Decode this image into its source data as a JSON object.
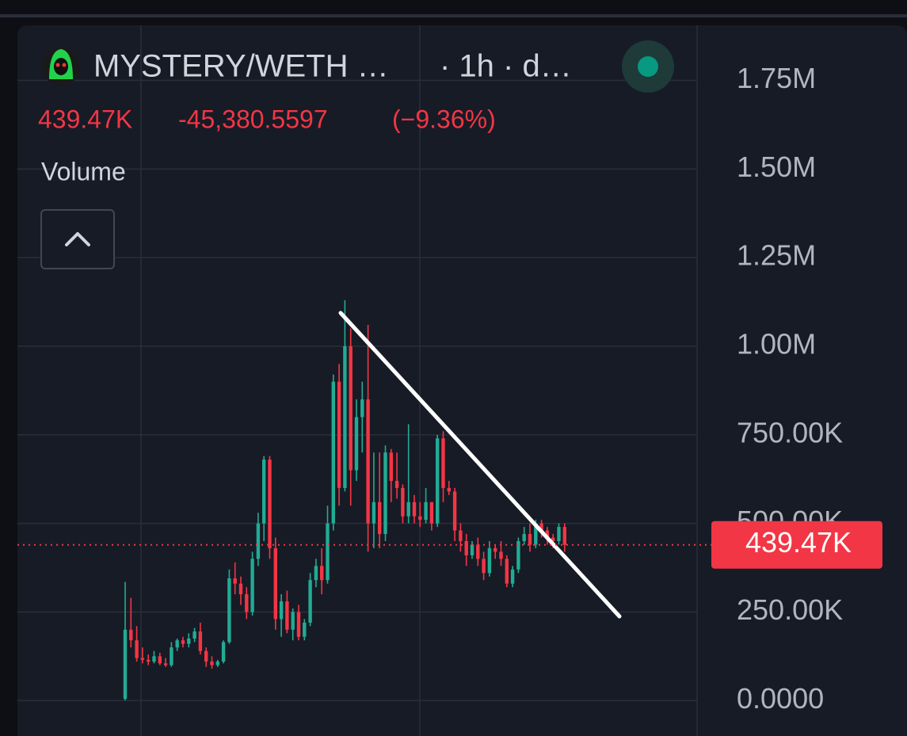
{
  "header": {
    "symbol": "MYSTERY/WETH …",
    "interval": "· 1h · d…",
    "price": "439.47K",
    "change": "-45,380.5597",
    "change_percent": "(−9.36%)",
    "indicator": "Volume"
  },
  "chart_data": {
    "type": "candlestick",
    "open": [
      5000,
      200000,
      170000,
      120000,
      115000,
      110000,
      125000,
      105000,
      100000,
      150000,
      170000,
      160000,
      175000,
      195000,
      140000,
      110000,
      100000,
      110000,
      165000,
      345000,
      330000,
      300000,
      250000,
      400000,
      500000,
      680000,
      430000,
      230000,
      280000,
      200000,
      250000,
      180000,
      220000,
      340000,
      380000,
      340000,
      500000,
      900000,
      600000,
      1000000,
      650000,
      800000,
      850000,
      500000,
      560000,
      470000,
      700000,
      620000,
      600000,
      520000,
      560000,
      520000,
      510000,
      560000,
      500000,
      740000,
      600000,
      590000,
      480000,
      450000,
      410000,
      440000,
      400000,
      360000,
      430000,
      420000,
      400000,
      330000,
      370000,
      450000,
      470000,
      440000,
      500000,
      480000,
      460000,
      450000,
      490000
    ],
    "high": [
      335000,
      290000,
      210000,
      150000,
      130000,
      140000,
      135000,
      120000,
      165000,
      175000,
      180000,
      190000,
      205000,
      220000,
      150000,
      125000,
      115000,
      170000,
      370000,
      390000,
      350000,
      320000,
      420000,
      530000,
      690000,
      690000,
      460000,
      300000,
      310000,
      260000,
      270000,
      230000,
      360000,
      400000,
      430000,
      550000,
      920000,
      950000,
      1130000,
      1050000,
      850000,
      900000,
      1060000,
      700000,
      700000,
      720000,
      710000,
      700000,
      610000,
      780000,
      580000,
      560000,
      600000,
      560000,
      750000,
      760000,
      620000,
      600000,
      500000,
      470000,
      450000,
      460000,
      420000,
      450000,
      440000,
      450000,
      410000,
      380000,
      460000,
      490000,
      500000,
      510000,
      510000,
      490000,
      470000,
      500000,
      500000
    ],
    "low": [
      0,
      150000,
      110000,
      105000,
      100000,
      105000,
      100000,
      95000,
      95000,
      140000,
      150000,
      150000,
      165000,
      130000,
      95000,
      90000,
      95000,
      105000,
      160000,
      300000,
      270000,
      230000,
      240000,
      380000,
      450000,
      400000,
      200000,
      180000,
      190000,
      170000,
      170000,
      170000,
      210000,
      320000,
      300000,
      330000,
      480000,
      550000,
      590000,
      550000,
      620000,
      700000,
      420000,
      430000,
      430000,
      450000,
      560000,
      570000,
      500000,
      500000,
      500000,
      490000,
      500000,
      480000,
      490000,
      560000,
      580000,
      450000,
      420000,
      380000,
      400000,
      380000,
      340000,
      350000,
      400000,
      380000,
      320000,
      320000,
      360000,
      440000,
      420000,
      430000,
      460000,
      440000,
      430000,
      440000,
      420000
    ],
    "close": [
      200000,
      170000,
      120000,
      115000,
      110000,
      125000,
      105000,
      100000,
      150000,
      170000,
      160000,
      175000,
      195000,
      140000,
      110000,
      100000,
      110000,
      165000,
      345000,
      330000,
      300000,
      250000,
      400000,
      500000,
      680000,
      430000,
      230000,
      280000,
      200000,
      250000,
      180000,
      220000,
      340000,
      380000,
      340000,
      500000,
      900000,
      600000,
      1000000,
      650000,
      800000,
      850000,
      500000,
      560000,
      470000,
      700000,
      620000,
      600000,
      520000,
      560000,
      520000,
      510000,
      560000,
      500000,
      740000,
      600000,
      590000,
      480000,
      450000,
      410000,
      440000,
      400000,
      360000,
      430000,
      420000,
      400000,
      330000,
      370000,
      450000,
      470000,
      440000,
      500000,
      480000,
      460000,
      450000,
      490000,
      439470
    ],
    "up_color": "#22ab94",
    "down_color": "#f23645",
    "ylim": [
      -100000,
      1910000
    ],
    "yticks": [
      {
        "value": 0,
        "label": "0.0000"
      },
      {
        "value": 250000,
        "label": "250.00K"
      },
      {
        "value": 500000,
        "label": "500.00K"
      },
      {
        "value": 750000,
        "label": "750.00K"
      },
      {
        "value": 1000000,
        "label": "1.00M"
      },
      {
        "value": 1250000,
        "label": "1.25M"
      },
      {
        "value": 1500000,
        "label": "1.50M"
      },
      {
        "value": 1750000,
        "label": "1.75M"
      }
    ],
    "grid": true,
    "last_price": 439470,
    "last_price_label": "439.47K"
  }
}
